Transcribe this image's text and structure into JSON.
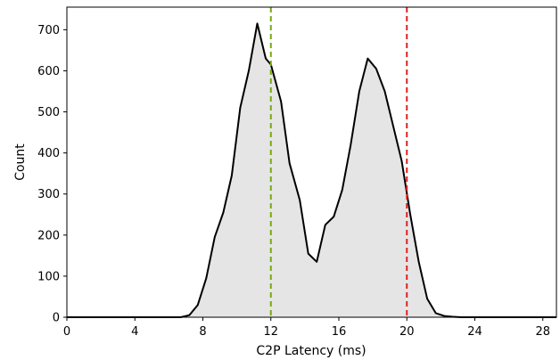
{
  "chart_data": {
    "type": "area",
    "title": "",
    "xlabel": "C2P Latency (ms)",
    "ylabel": "Count",
    "xlim": [
      0,
      28.8
    ],
    "ylim": [
      0,
      755
    ],
    "xticks": [
      0,
      4,
      8,
      12,
      16,
      20,
      24,
      28
    ],
    "yticks": [
      0,
      100,
      200,
      300,
      400,
      500,
      600,
      700
    ],
    "grid": false,
    "legend": "none",
    "fill_color": "#e5e5e5",
    "line_color": "#000000",
    "x": [
      0,
      6.7,
      7.2,
      7.7,
      8.2,
      8.7,
      9.2,
      9.7,
      10.2,
      10.7,
      11.2,
      11.7,
      12.0,
      12.6,
      13.1,
      13.7,
      14.2,
      14.7,
      15.2,
      15.7,
      16.2,
      16.7,
      17.2,
      17.7,
      18.2,
      18.7,
      19.2,
      19.7,
      20.2,
      20.7,
      21.2,
      21.7,
      22.2,
      22.7,
      23.2,
      23.7,
      24.2,
      24.7,
      25.2,
      25.7,
      26.2,
      28.8
    ],
    "y": [
      0,
      0,
      5,
      30,
      95,
      195,
      255,
      345,
      510,
      600,
      715,
      630,
      615,
      525,
      375,
      285,
      155,
      135,
      225,
      245,
      310,
      420,
      550,
      630,
      605,
      550,
      465,
      380,
      250,
      135,
      45,
      10,
      3,
      1,
      0,
      0,
      0,
      0,
      0,
      0,
      0,
      0
    ],
    "vlines": [
      {
        "x": 12,
        "color": "#77aa11",
        "style": "dashed"
      },
      {
        "x": 20,
        "color": "#dd2222",
        "style": "dashed"
      }
    ]
  }
}
